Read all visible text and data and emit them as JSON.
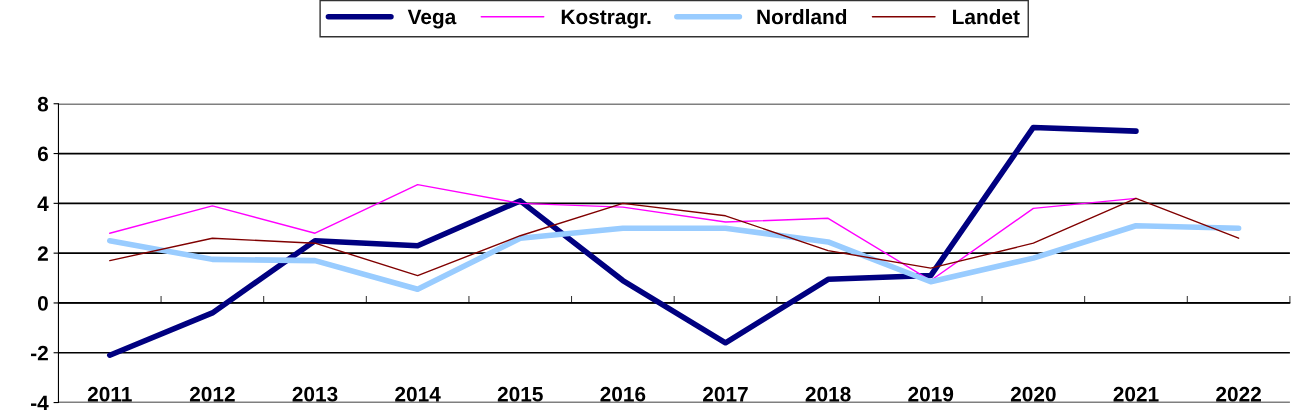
{
  "chart_data": {
    "type": "line",
    "categories": [
      "2011",
      "2012",
      "2013",
      "2014",
      "2015",
      "2016",
      "2017",
      "2018",
      "2019",
      "2020",
      "2021",
      "2022"
    ],
    "series": [
      {
        "name": "Vega",
        "color": "#000080",
        "values": [
          -2.1,
          -0.4,
          2.5,
          2.3,
          4.1,
          0.9,
          -1.6,
          0.95,
          1.1,
          7.05,
          6.9,
          null
        ]
      },
      {
        "name": "Kostragr.",
        "color": "#ff00ff",
        "values": [
          2.8,
          3.9,
          2.8,
          4.75,
          4.0,
          3.85,
          3.25,
          3.4,
          0.9,
          3.8,
          4.2,
          null
        ]
      },
      {
        "name": "Nordland",
        "color": "#99ccff",
        "values": [
          2.5,
          1.75,
          1.7,
          0.55,
          2.6,
          3.0,
          3.0,
          2.45,
          0.85,
          1.8,
          3.1,
          3.0
        ]
      },
      {
        "name": "Landet",
        "color": "#800000",
        "values": [
          1.7,
          2.6,
          2.4,
          1.1,
          2.7,
          4.0,
          3.5,
          2.1,
          1.4,
          2.4,
          4.2,
          2.6
        ]
      }
    ],
    "ylim": [
      -4,
      8
    ],
    "yticks": [
      -4,
      -2,
      0,
      2,
      4,
      6,
      8
    ],
    "grid": "y",
    "legend": "top",
    "marker": "none",
    "line_style": "solid"
  }
}
